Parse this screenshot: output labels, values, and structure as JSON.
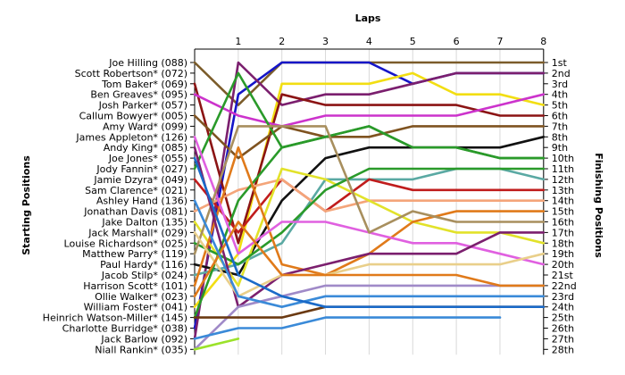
{
  "chart_data": {
    "type": "line",
    "xlabel": "Laps",
    "ylabel_left": "Starting Positions",
    "ylabel_right": "Finishing Positions",
    "x_ticks": [
      "1",
      "2",
      "3",
      "4",
      "5",
      "6",
      "7",
      "8"
    ],
    "positions": 28,
    "left_labels": [
      "Joe Hilling (088)",
      "Scott Robertson* (072)",
      "Tom Baker* (069)",
      "Ben Greaves* (095)",
      "Josh Parker* (057)",
      "Callum Bowyer* (005)",
      "Amy Ward* (099)",
      "James Appleton* (126)",
      "Andy King* (085)",
      "Joe Jones* (055)",
      "Jody Fannin* (027)",
      "Jamie Dzyra* (049)",
      "Sam Clarence* (021)",
      "Ashley Hand (136)",
      "Jonathan Davis (081)",
      "Jake Dalton (135)",
      "Jack Marshall* (029)",
      "Louise Richardson* (025)",
      "Matthew Parry* (119)",
      "Paul Hardy* (116)",
      "Jacob Stilp* (024)",
      "Harrison Scott* (101)",
      "Ollie Walker* (023)",
      "William Foster* (041)",
      "Heinrich Watson-Miller* (145)",
      "Charlotte Burridge* (038)",
      "Jack Barlow (092)",
      "Niall Rankin* (035)"
    ],
    "right_labels": [
      "1st",
      "2nd",
      "3rd",
      "4th",
      "5th",
      "6th",
      "7th",
      "8th",
      "9th",
      "10th",
      "11th",
      "12th",
      "13th",
      "14th",
      "15th",
      "16th",
      "17th",
      "18th",
      "19th",
      "20th",
      "21st",
      "22nd",
      "23rd",
      "24th",
      "25th",
      "26th",
      "27th",
      "28th"
    ],
    "series": [
      {
        "color": "#7b5c2a",
        "values": [
          1,
          5,
          1,
          1,
          1,
          1,
          1,
          1,
          1
        ]
      },
      {
        "color": "#1515c8",
        "values": [
          26,
          4,
          1,
          1,
          1,
          3,
          2,
          2,
          2
        ]
      },
      {
        "color": "#f2de12",
        "values": [
          24,
          19,
          3,
          3,
          3,
          2,
          4,
          4,
          5
        ]
      },
      {
        "color": "#7b1f6e",
        "values": [
          27,
          1,
          5,
          4,
          4,
          3,
          2,
          2,
          2
        ]
      },
      {
        "color": "#8b1414",
        "values": [
          3,
          18,
          4,
          5,
          5,
          5,
          5,
          6,
          6
        ]
      },
      {
        "color": "#cc33cc",
        "values": [
          4,
          6,
          7,
          6,
          6,
          6,
          6,
          5,
          4
        ]
      },
      {
        "color": "#7f5320",
        "values": [
          6,
          10,
          7,
          8,
          8,
          7,
          7,
          7,
          7
        ]
      },
      {
        "color": "#2a9a2a",
        "values": [
          11,
          2,
          9,
          8,
          7,
          9,
          9,
          10,
          10
        ]
      },
      {
        "color": "#111111",
        "values": [
          20,
          21,
          14,
          10,
          9,
          9,
          9,
          9,
          8
        ]
      },
      {
        "color": "#5aa9a3",
        "values": [
          21,
          20,
          18,
          12,
          12,
          12,
          11,
          11,
          12
        ]
      },
      {
        "color": "#c01c1c",
        "values": [
          12,
          17,
          12,
          15,
          12,
          13,
          13,
          13,
          13
        ]
      },
      {
        "color": "#f4a57a",
        "values": [
          15,
          13,
          12,
          15,
          14,
          14,
          14,
          14,
          14
        ]
      },
      {
        "color": "#e2e22a",
        "values": [
          16,
          22,
          11,
          12,
          14,
          16,
          17,
          17,
          18
        ]
      },
      {
        "color": "#2a9a2a",
        "values": [
          18,
          20,
          17,
          13,
          11,
          11,
          11,
          11,
          11
        ]
      },
      {
        "color": "#2a9a2a",
        "values": [
          25,
          14,
          9,
          8,
          7,
          9,
          9,
          10,
          10
        ]
      },
      {
        "color": "#e07a1a",
        "values": [
          22,
          9,
          20,
          21,
          19,
          16,
          15,
          15,
          15
        ]
      },
      {
        "color": "#e060e0",
        "values": [
          8,
          19,
          16,
          16,
          17,
          18,
          18,
          19,
          20
        ]
      },
      {
        "color": "#a88f5e",
        "values": [
          19,
          7,
          7,
          7,
          17,
          15,
          16,
          16,
          16
        ]
      },
      {
        "color": "#7b1f6e",
        "values": [
          9,
          24,
          21,
          20,
          19,
          19,
          19,
          17,
          17
        ]
      },
      {
        "color": "#e9cf8a",
        "values": [
          17,
          23,
          21,
          21,
          20,
          20,
          20,
          20,
          19
        ]
      },
      {
        "color": "#a08ac8",
        "values": [
          28,
          24,
          23,
          22,
          22,
          22,
          22,
          22,
          22
        ]
      },
      {
        "color": "#e07a1a",
        "values": [
          23,
          16,
          21,
          21,
          21,
          21,
          21,
          22,
          22
        ]
      },
      {
        "color": "#3a8ad8",
        "values": [
          14,
          23,
          24,
          23,
          23,
          23,
          23,
          23,
          23
        ]
      },
      {
        "color": "#6b3a12",
        "values": [
          25,
          25,
          25,
          24,
          24,
          24,
          24,
          24,
          24
        ]
      },
      {
        "color": "#3a8ad8",
        "values": [
          27,
          26,
          26,
          25,
          25,
          25,
          25,
          25,
          null
        ]
      },
      {
        "color": "#1a6ac8",
        "values": [
          10,
          21,
          23,
          24,
          24,
          24,
          24,
          24,
          24
        ]
      },
      {
        "color": "#9be22a",
        "values": [
          28,
          27,
          null,
          null,
          null,
          null,
          null,
          null,
          null
        ]
      }
    ]
  }
}
